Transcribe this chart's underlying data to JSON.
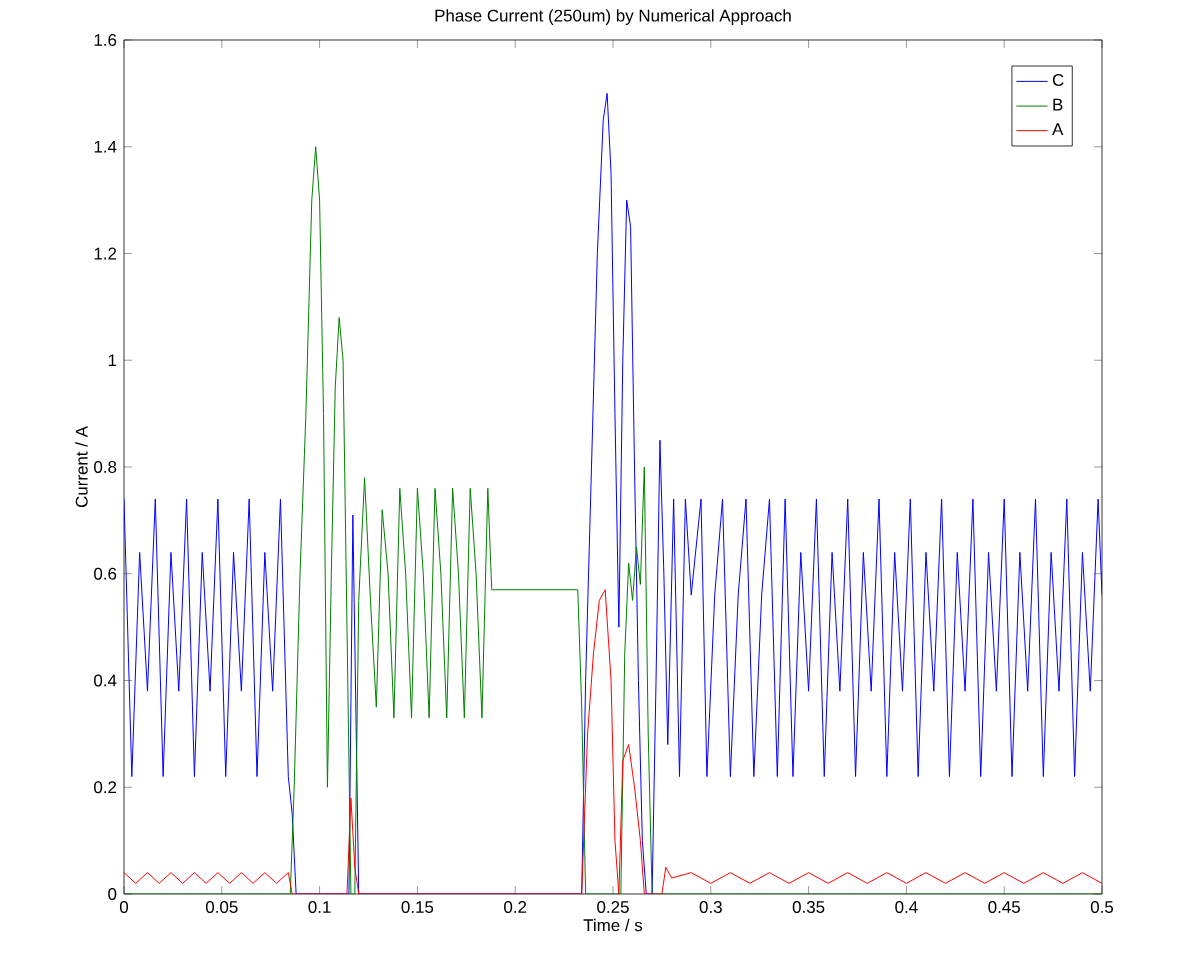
{
  "chart_data": {
    "type": "line",
    "title": "Phase Current (250um) by Numerical Approach",
    "xlabel": "Time / s",
    "ylabel": "Current / A",
    "xlim": [
      0,
      0.5
    ],
    "ylim": [
      0,
      1.6
    ],
    "xticks": [
      0,
      0.05,
      0.1,
      0.15,
      0.2,
      0.25,
      0.3,
      0.35,
      0.4,
      0.45,
      0.5
    ],
    "yticks": [
      0,
      0.2,
      0.4,
      0.6,
      0.8,
      1,
      1.2,
      1.4,
      1.6
    ],
    "legend": "top right",
    "grid": false,
    "marker": "none",
    "line_style": "solid",
    "series": [
      {
        "name": "C",
        "color": "#0000ff",
        "x": [
          0,
          0.004,
          0.008,
          0.012,
          0.016,
          0.02,
          0.024,
          0.028,
          0.032,
          0.036,
          0.04,
          0.044,
          0.048,
          0.052,
          0.056,
          0.06,
          0.064,
          0.068,
          0.072,
          0.076,
          0.08,
          0.084,
          0.086,
          0.088,
          0.115,
          0.117,
          0.12,
          0.234,
          0.236,
          0.239,
          0.242,
          0.245,
          0.247,
          0.249,
          0.251,
          0.253,
          0.255,
          0.257,
          0.259,
          0.261,
          0.263,
          0.265,
          0.267,
          0.27,
          0.272,
          0.274,
          0.276,
          0.278,
          0.281,
          0.284,
          0.287,
          0.29,
          0.295,
          0.298,
          0.302,
          0.306,
          0.31,
          0.314,
          0.318,
          0.322,
          0.326,
          0.33,
          0.334,
          0.338,
          0.342,
          0.346,
          0.35,
          0.354,
          0.358,
          0.362,
          0.366,
          0.37,
          0.374,
          0.378,
          0.382,
          0.386,
          0.39,
          0.394,
          0.398,
          0.402,
          0.406,
          0.41,
          0.414,
          0.418,
          0.422,
          0.426,
          0.43,
          0.434,
          0.438,
          0.442,
          0.446,
          0.45,
          0.454,
          0.458,
          0.462,
          0.466,
          0.47,
          0.474,
          0.478,
          0.482,
          0.486,
          0.49,
          0.494,
          0.498,
          0.5
        ],
        "values": [
          0.74,
          0.22,
          0.64,
          0.38,
          0.74,
          0.22,
          0.64,
          0.38,
          0.74,
          0.22,
          0.64,
          0.38,
          0.74,
          0.22,
          0.64,
          0.38,
          0.74,
          0.22,
          0.64,
          0.38,
          0.74,
          0.22,
          0.15,
          0,
          0,
          0.71,
          0,
          0,
          0.4,
          0.8,
          1.2,
          1.45,
          1.5,
          1.35,
          0.9,
          0.5,
          1.0,
          1.3,
          1.25,
          0.8,
          0.4,
          0.1,
          0,
          0,
          0.4,
          0.85,
          0.6,
          0.28,
          0.74,
          0.22,
          0.74,
          0.56,
          0.74,
          0.22,
          0.56,
          0.74,
          0.22,
          0.56,
          0.74,
          0.22,
          0.56,
          0.74,
          0.22,
          0.74,
          0.22,
          0.64,
          0.38,
          0.74,
          0.22,
          0.64,
          0.38,
          0.74,
          0.22,
          0.64,
          0.38,
          0.74,
          0.22,
          0.64,
          0.38,
          0.74,
          0.22,
          0.64,
          0.38,
          0.74,
          0.22,
          0.64,
          0.38,
          0.74,
          0.22,
          0.64,
          0.38,
          0.74,
          0.22,
          0.64,
          0.38,
          0.74,
          0.22,
          0.64,
          0.38,
          0.74,
          0.22,
          0.64,
          0.38,
          0.74,
          0.56
        ]
      },
      {
        "name": "B",
        "color": "#008000",
        "x": [
          0,
          0.085,
          0.087,
          0.09,
          0.093,
          0.096,
          0.098,
          0.1,
          0.102,
          0.104,
          0.106,
          0.108,
          0.11,
          0.112,
          0.114,
          0.116,
          0.118,
          0.12,
          0.123,
          0.126,
          0.129,
          0.132,
          0.135,
          0.138,
          0.141,
          0.144,
          0.147,
          0.15,
          0.153,
          0.156,
          0.159,
          0.162,
          0.165,
          0.168,
          0.171,
          0.174,
          0.177,
          0.18,
          0.183,
          0.186,
          0.188,
          0.232,
          0.234,
          0.236,
          0.254,
          0.256,
          0.258,
          0.26,
          0.262,
          0.264,
          0.266,
          0.268,
          0.27,
          0.5
        ],
        "values": [
          0,
          0,
          0.2,
          0.6,
          0.9,
          1.3,
          1.4,
          1.3,
          0.9,
          0.2,
          0.6,
          0.95,
          1.08,
          1.0,
          0.5,
          0,
          0,
          0.55,
          0.78,
          0.55,
          0.35,
          0.72,
          0.6,
          0.33,
          0.76,
          0.6,
          0.33,
          0.76,
          0.6,
          0.33,
          0.76,
          0.6,
          0.33,
          0.76,
          0.6,
          0.33,
          0.76,
          0.6,
          0.33,
          0.76,
          0.57,
          0.57,
          0.35,
          0,
          0,
          0.45,
          0.62,
          0.55,
          0.65,
          0.58,
          0.8,
          0.3,
          0,
          0
        ]
      },
      {
        "name": "A",
        "color": "#ff0000",
        "x": [
          0,
          0.006,
          0.012,
          0.018,
          0.024,
          0.03,
          0.036,
          0.042,
          0.048,
          0.054,
          0.06,
          0.066,
          0.072,
          0.078,
          0.084,
          0.086,
          0.114,
          0.116,
          0.118,
          0.12,
          0.234,
          0.237,
          0.24,
          0.243,
          0.246,
          0.249,
          0.251,
          0.253,
          0.255,
          0.258,
          0.261,
          0.264,
          0.266,
          0.275,
          0.277,
          0.28,
          0.29,
          0.3,
          0.31,
          0.32,
          0.33,
          0.34,
          0.35,
          0.36,
          0.37,
          0.38,
          0.39,
          0.4,
          0.41,
          0.42,
          0.43,
          0.44,
          0.45,
          0.46,
          0.47,
          0.48,
          0.49,
          0.5
        ],
        "values": [
          0.04,
          0.02,
          0.04,
          0.02,
          0.04,
          0.02,
          0.04,
          0.02,
          0.04,
          0.02,
          0.04,
          0.02,
          0.04,
          0.02,
          0.04,
          0,
          0,
          0.18,
          0.05,
          0,
          0,
          0.3,
          0.45,
          0.55,
          0.57,
          0.4,
          0.1,
          0,
          0.25,
          0.28,
          0.2,
          0.1,
          0,
          0,
          0.05,
          0.03,
          0.04,
          0.02,
          0.04,
          0.02,
          0.04,
          0.02,
          0.04,
          0.02,
          0.04,
          0.02,
          0.04,
          0.02,
          0.04,
          0.02,
          0.04,
          0.02,
          0.04,
          0.02,
          0.04,
          0.02,
          0.04,
          0.02
        ]
      }
    ]
  }
}
